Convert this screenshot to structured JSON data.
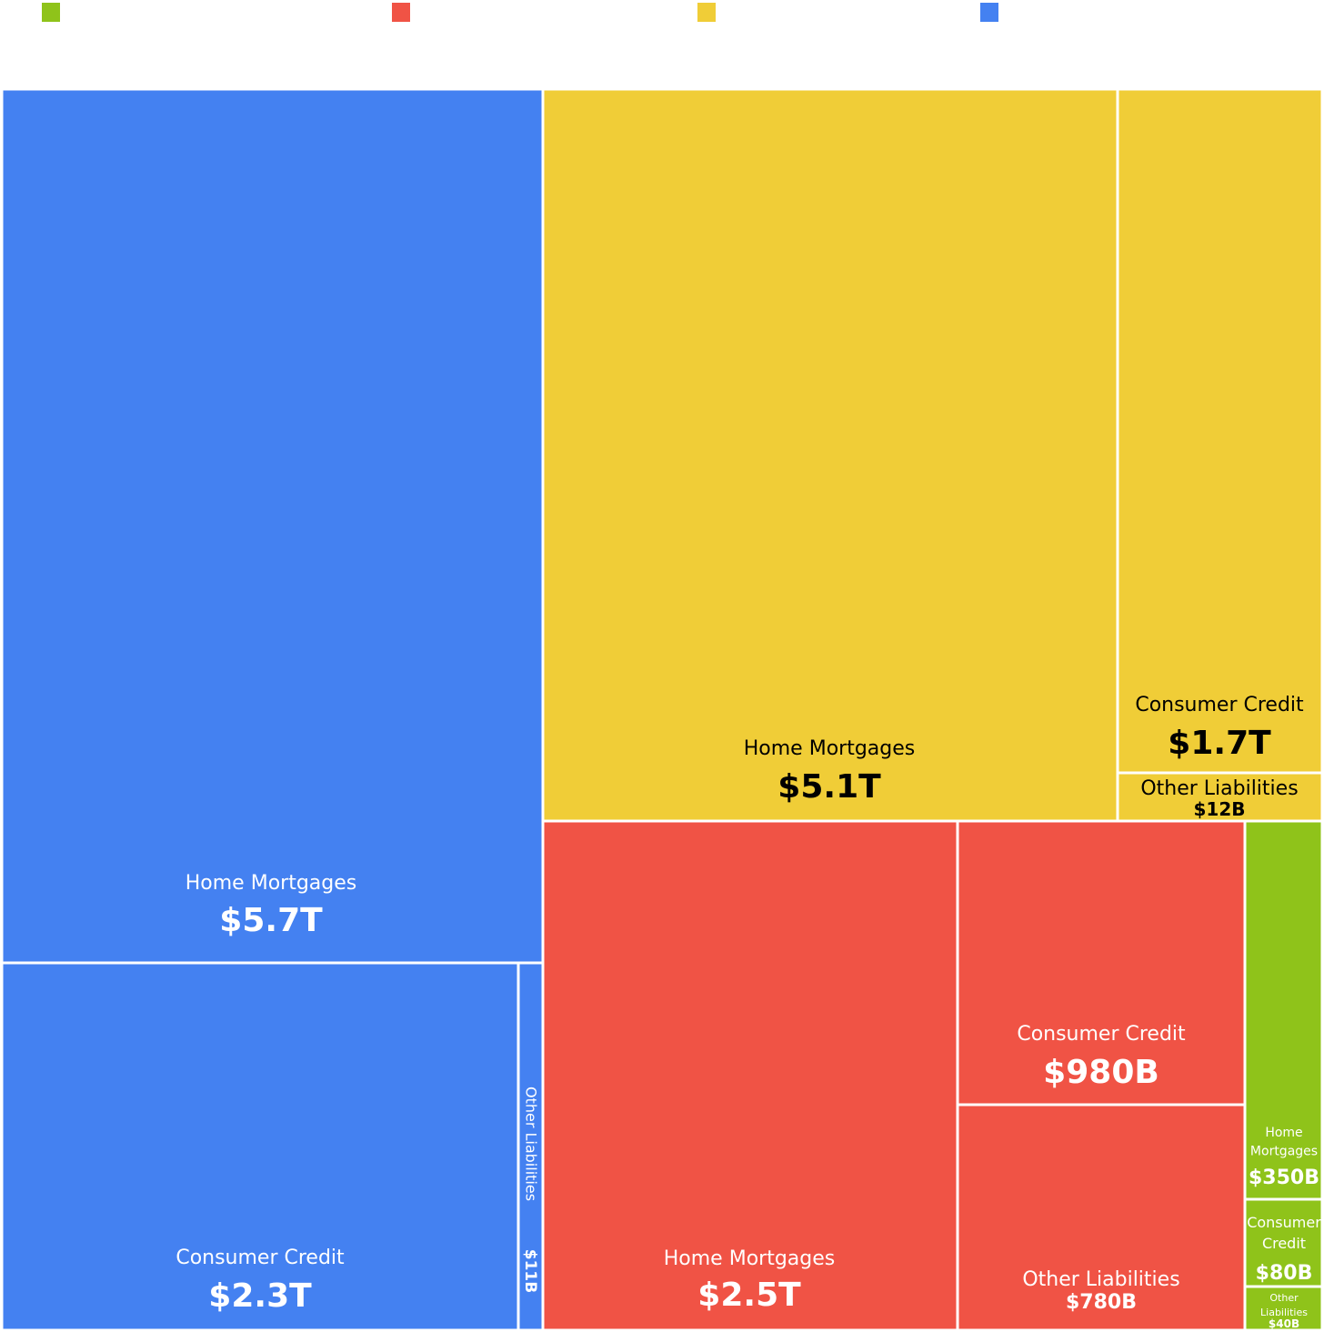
{
  "chart_data": {
    "type": "treemap",
    "title": "",
    "units": "USD",
    "legend": {
      "placement": "top",
      "entries": [
        {
          "name": "",
          "color": "#8fc31a"
        },
        {
          "name": "",
          "color": "#f05345"
        },
        {
          "name": "",
          "color": "#f0cd37"
        },
        {
          "name": "",
          "color": "#4481f1"
        }
      ]
    },
    "groups": [
      {
        "name": "",
        "color": "#4481f1",
        "text_color": "#ffffff",
        "children": [
          {
            "label": "Home Mortgages",
            "display": "$5.7T",
            "value": 5700000000000
          },
          {
            "label": "Consumer Credit",
            "display": "$2.3T",
            "value": 2300000000000
          },
          {
            "label": "Other Liabilities",
            "display": "$11B",
            "value": 11000000000
          }
        ]
      },
      {
        "name": "",
        "color": "#f0cd37",
        "text_color": "#000000",
        "children": [
          {
            "label": "Home Mortgages",
            "display": "$5.1T",
            "value": 5100000000000
          },
          {
            "label": "Consumer Credit",
            "display": "$1.7T",
            "value": 1700000000000
          },
          {
            "label": "Other Liabilities",
            "display": "$12B",
            "value": 12000000000
          }
        ]
      },
      {
        "name": "",
        "color": "#f05345",
        "text_color": "#ffffff",
        "children": [
          {
            "label": "Home Mortgages",
            "display": "$2.5T",
            "value": 2500000000000
          },
          {
            "label": "Consumer Credit",
            "display": "$980B",
            "value": 980000000000
          },
          {
            "label": "Other Liabilities",
            "display": "$780B",
            "value": 780000000000
          }
        ]
      },
      {
        "name": "",
        "color": "#8fc31a",
        "text_color": "#ffffff",
        "children": [
          {
            "label": "Home Mortgages",
            "display": "$350B",
            "value": 350000000000
          },
          {
            "label": "Consumer Credit",
            "display": "$80B",
            "value": 80000000000
          },
          {
            "label": "Other Liabilities",
            "display": "$40B",
            "value": 40000000000
          }
        ]
      }
    ]
  }
}
